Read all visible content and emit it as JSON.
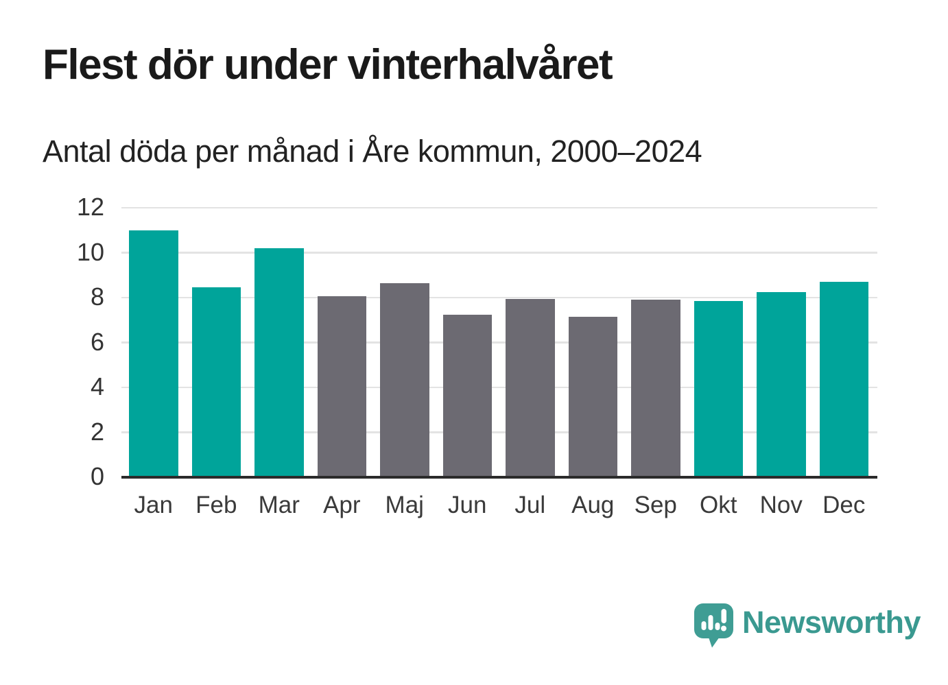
{
  "title": "Flest dör under vinterhalvåret",
  "subtitle": "Antal döda per månad i Åre kommun, 2000–2024",
  "chart_data": {
    "type": "bar",
    "categories": [
      "Jan",
      "Feb",
      "Mar",
      "Apr",
      "Maj",
      "Jun",
      "Jul",
      "Aug",
      "Sep",
      "Okt",
      "Nov",
      "Dec"
    ],
    "values": [
      11.0,
      8.45,
      10.2,
      8.05,
      8.65,
      7.25,
      7.95,
      7.15,
      7.9,
      7.85,
      8.25,
      8.7
    ],
    "title": "Flest dör under vinterhalvåret",
    "subtitle": "Antal döda per månad i Åre kommun, 2000–2024",
    "xlabel": "",
    "ylabel": "",
    "ylim": [
      0,
      12
    ],
    "yticks": [
      0,
      2,
      4,
      6,
      8,
      10,
      12
    ],
    "grid": true,
    "legend": false,
    "winter_months": [
      "Jan",
      "Feb",
      "Mar",
      "Okt",
      "Nov",
      "Dec"
    ],
    "highlight_meaning": "winter half-year months highlighted in teal, summer months gray"
  },
  "colors": {
    "bar_teal": "#00a49a",
    "bar_gray": "#6c6a72",
    "axis_line": "#2b2b2b",
    "gridline": "#e3e3e3",
    "tick_label": "#333333",
    "logo_badge": "#3f9d94",
    "logo_text": "#3a9990"
  },
  "logo": {
    "text": "Newsworthy",
    "icon": "speech-bubble-with-bar-chart-and-exclamation"
  }
}
